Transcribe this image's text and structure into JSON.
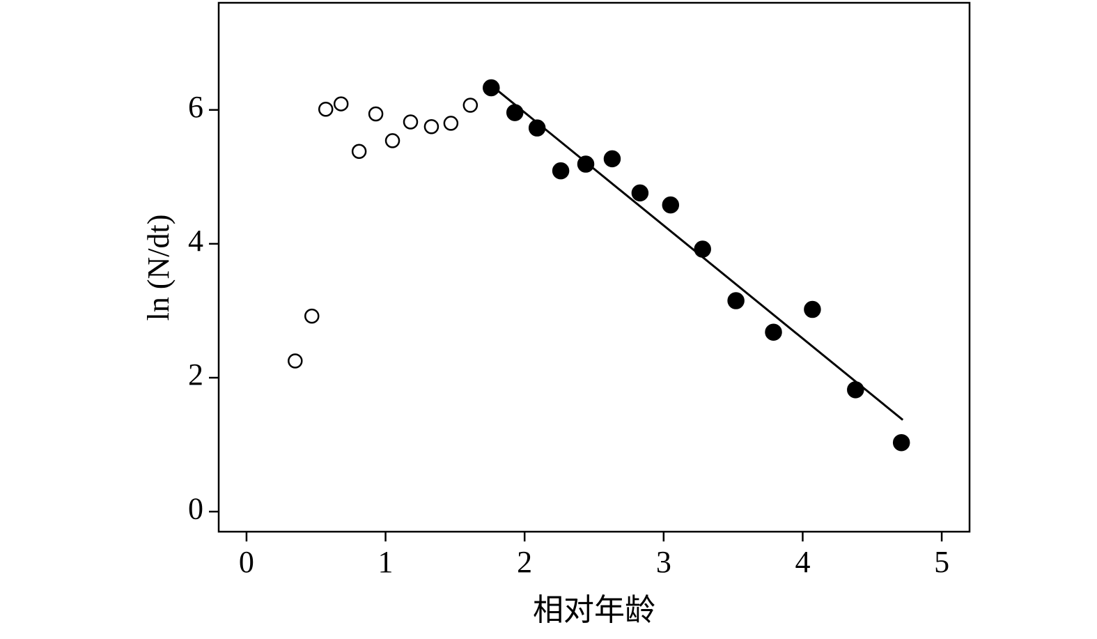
{
  "chart_data": {
    "type": "scatter",
    "xlabel": "相对年龄",
    "ylabel": "ln (N/dt)",
    "xlim": [
      -0.2,
      5.2
    ],
    "ylim": [
      -0.3,
      7.6
    ],
    "xticks": [
      0,
      1,
      2,
      3,
      4,
      5
    ],
    "yticks": [
      0,
      2,
      4,
      6
    ],
    "grid": false,
    "series": [
      {
        "marker": "open",
        "color": "#000000",
        "x": [
          0.35,
          0.47,
          0.57,
          0.68,
          0.81,
          0.93,
          1.05,
          1.18,
          1.33,
          1.47,
          1.61
        ],
        "values": [
          2.25,
          2.92,
          6.01,
          6.09,
          5.38,
          5.94,
          5.54,
          5.82,
          5.75,
          5.8,
          6.07
        ]
      },
      {
        "marker": "filled",
        "color": "#000000",
        "x": [
          1.76,
          1.93,
          2.09,
          2.26,
          2.44,
          2.63,
          2.83,
          3.05,
          3.28,
          3.52,
          3.79,
          4.07,
          4.38,
          4.71
        ],
        "values": [
          6.33,
          5.96,
          5.73,
          5.09,
          5.19,
          5.27,
          4.76,
          4.58,
          3.92,
          3.15,
          2.68,
          3.02,
          1.82,
          1.03
        ]
      }
    ],
    "fit_line": {
      "color": "#000000",
      "x": [
        1.8,
        4.72
      ],
      "values": [
        6.3,
        1.37
      ]
    }
  }
}
